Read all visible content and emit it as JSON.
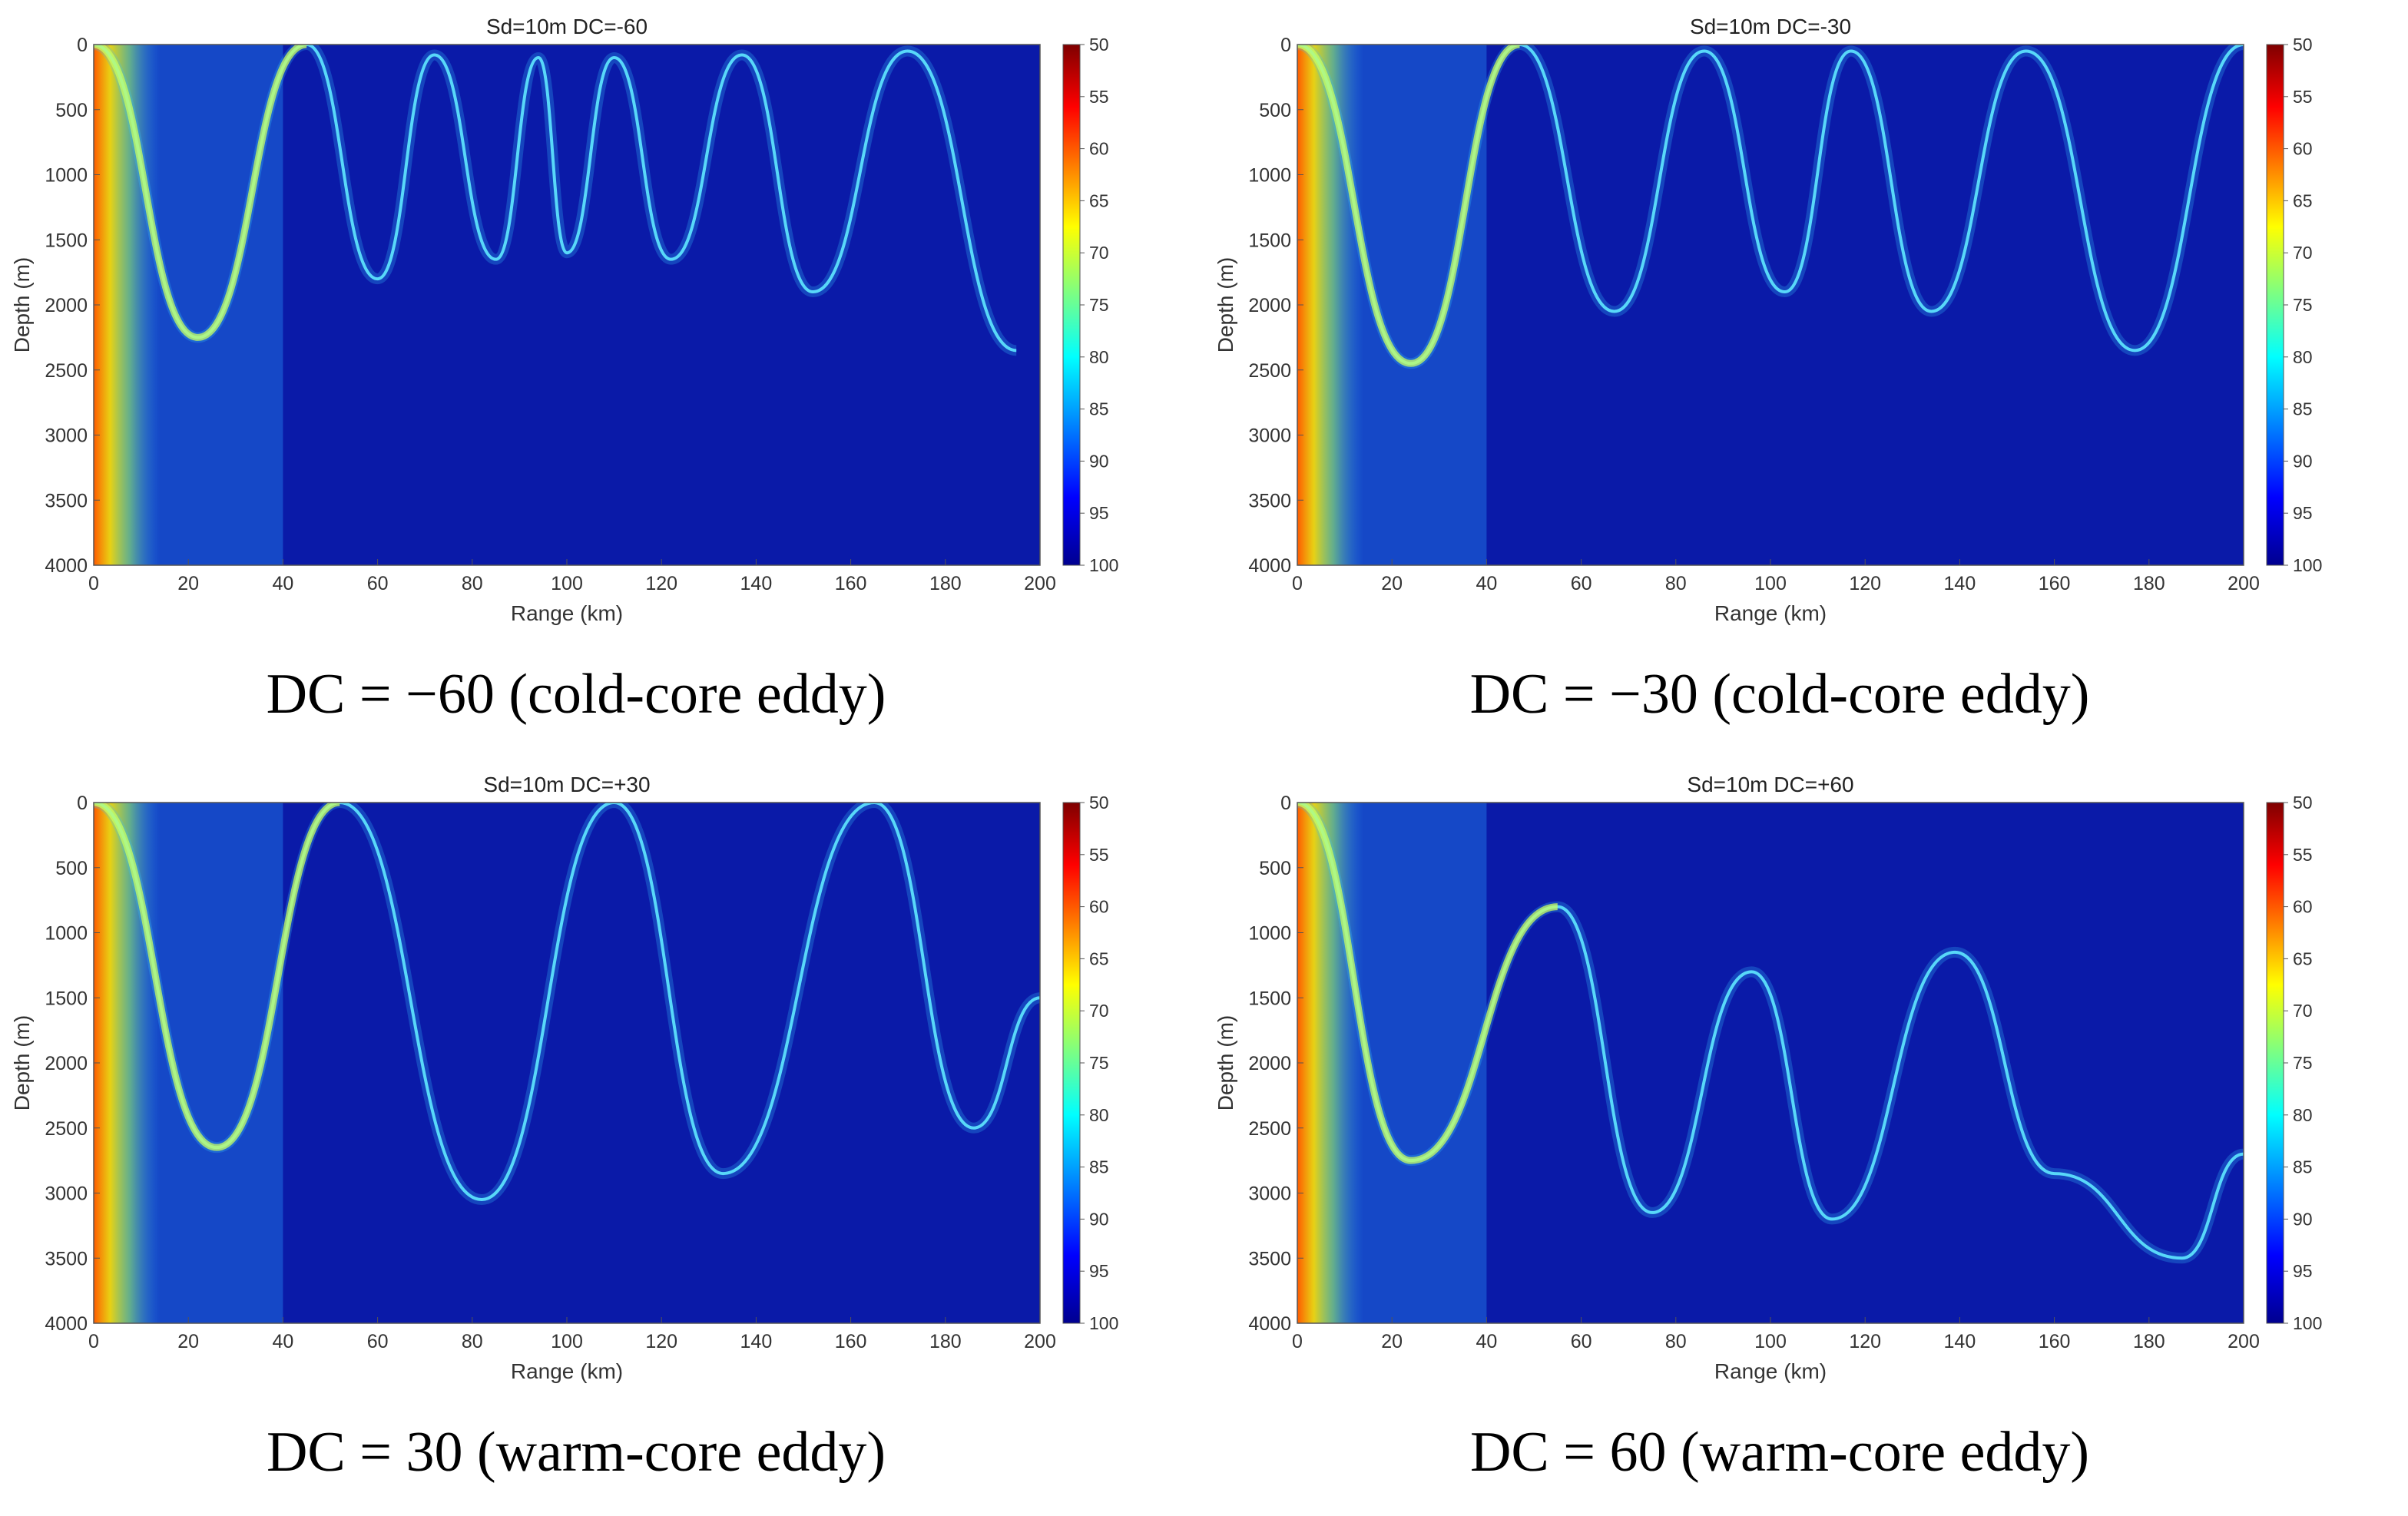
{
  "figure": {
    "panels": [
      {
        "title": "Sd=10m   DC=-60",
        "caption": "DC = −60 (cold-core eddy)"
      },
      {
        "title": "Sd=10m   DC=-30",
        "caption": "DC = −30 (cold-core eddy)"
      },
      {
        "title": "Sd=10m   DC=+30",
        "caption": "DC = 30 (warm-core eddy)"
      },
      {
        "title": "Sd=10m   DC=+60",
        "caption": "DC = 60 (warm-core eddy)"
      }
    ]
  },
  "chart_data": [
    {
      "type": "heatmap",
      "title": "Sd=10m   DC=-60",
      "xlabel": "Range (km)",
      "ylabel": "Depth (m)",
      "xlim": [
        0,
        200
      ],
      "ylim": [
        0,
        4000
      ],
      "x_ticks": [
        "0",
        "20",
        "40",
        "60",
        "80",
        "100",
        "120",
        "140",
        "160",
        "180",
        "200"
      ],
      "y_ticks": [
        "0",
        "500",
        "1000",
        "1500",
        "2000",
        "2500",
        "3000",
        "3500",
        "4000"
      ],
      "colorbar": {
        "range": [
          50,
          100
        ],
        "reversed": true,
        "ticks": [
          "50",
          "55",
          "60",
          "65",
          "70",
          "75",
          "80",
          "85",
          "90",
          "95",
          "100"
        ]
      },
      "colormap": "jet",
      "ray_turning_points": {
        "upper_depths": [
          0,
          0,
          0,
          0,
          0,
          0,
          0
        ],
        "x": [
          0,
          22,
          45,
          60,
          72,
          85,
          94,
          100,
          110,
          122,
          137,
          152,
          172,
          195
        ],
        "y": [
          0,
          2250,
          0,
          1800,
          80,
          1650,
          100,
          1600,
          100,
          1650,
          80,
          1900,
          50,
          2350
        ]
      }
    },
    {
      "type": "heatmap",
      "title": "Sd=10m   DC=-30",
      "xlabel": "Range (km)",
      "ylabel": "Depth (m)",
      "xlim": [
        0,
        200
      ],
      "ylim": [
        0,
        4000
      ],
      "x_ticks": [
        "0",
        "20",
        "40",
        "60",
        "80",
        "100",
        "120",
        "140",
        "160",
        "180",
        "200"
      ],
      "y_ticks": [
        "0",
        "500",
        "1000",
        "1500",
        "2000",
        "2500",
        "3000",
        "3500",
        "4000"
      ],
      "colorbar": {
        "range": [
          50,
          100
        ],
        "reversed": true,
        "ticks": [
          "50",
          "55",
          "60",
          "65",
          "70",
          "75",
          "80",
          "85",
          "90",
          "95",
          "100"
        ]
      },
      "colormap": "jet",
      "ray_turning_points": {
        "x": [
          0,
          24,
          47,
          67,
          86,
          103,
          117,
          134,
          154,
          177,
          200
        ],
        "y": [
          0,
          2450,
          0,
          2050,
          50,
          1900,
          50,
          2050,
          50,
          2350,
          0
        ]
      }
    },
    {
      "type": "heatmap",
      "title": "Sd=10m   DC=+30",
      "xlabel": "Range (km)",
      "ylabel": "Depth (m)",
      "xlim": [
        0,
        200
      ],
      "ylim": [
        0,
        4000
      ],
      "x_ticks": [
        "0",
        "20",
        "40",
        "60",
        "80",
        "100",
        "120",
        "140",
        "160",
        "180",
        "200"
      ],
      "y_ticks": [
        "0",
        "500",
        "1000",
        "1500",
        "2000",
        "2500",
        "3000",
        "3500",
        "4000"
      ],
      "colorbar": {
        "range": [
          50,
          100
        ],
        "reversed": true,
        "ticks": [
          "50",
          "55",
          "60",
          "65",
          "70",
          "75",
          "80",
          "85",
          "90",
          "95",
          "100"
        ]
      },
      "colormap": "jet",
      "ray_turning_points": {
        "x": [
          0,
          26,
          52,
          82,
          110,
          133,
          165,
          186,
          200
        ],
        "y": [
          0,
          2650,
          0,
          3050,
          0,
          2850,
          0,
          2500,
          1500
        ]
      }
    },
    {
      "type": "heatmap",
      "title": "Sd=10m   DC=+60",
      "xlabel": "Range (km)",
      "ylabel": "Depth (m)",
      "xlim": [
        0,
        200
      ],
      "ylim": [
        0,
        4000
      ],
      "x_ticks": [
        "0",
        "20",
        "40",
        "60",
        "80",
        "100",
        "120",
        "140",
        "160",
        "180",
        "200"
      ],
      "y_ticks": [
        "0",
        "500",
        "1000",
        "1500",
        "2000",
        "2500",
        "3000",
        "3500",
        "4000"
      ],
      "colorbar": {
        "range": [
          50,
          100
        ],
        "reversed": true,
        "ticks": [
          "50",
          "55",
          "60",
          "65",
          "70",
          "75",
          "80",
          "85",
          "90",
          "95",
          "100"
        ]
      },
      "colormap": "jet",
      "ray_turning_points": {
        "x": [
          0,
          24,
          55,
          75,
          96,
          113,
          139,
          160,
          187,
          200
        ],
        "y": [
          0,
          2750,
          800,
          3150,
          1300,
          3200,
          1150,
          2850,
          3500,
          2700
        ]
      }
    }
  ]
}
